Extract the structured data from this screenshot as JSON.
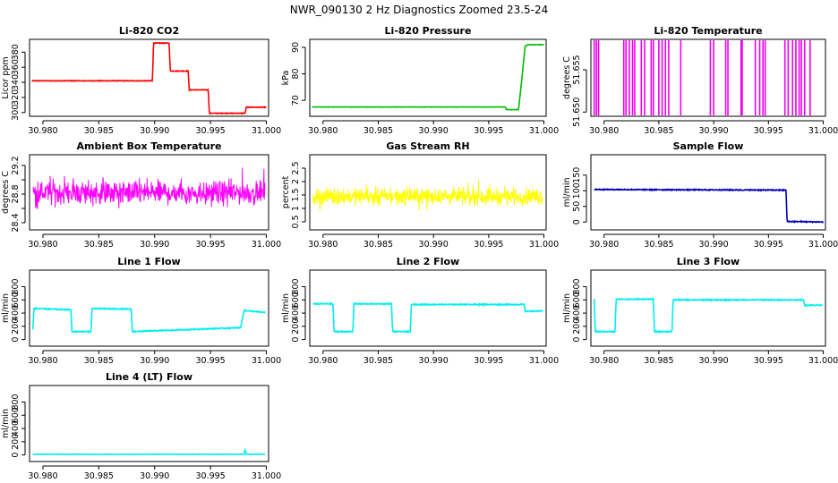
{
  "figure": {
    "title": "NWR_090130  2 Hz Diagnostics Zoomed 23.5-24"
  },
  "chart_data": [
    {
      "type": "line",
      "title": "Li-820 CO2",
      "ylabel": "Licor ppm",
      "color": "#ff0000",
      "xlim": [
        30.9788,
        31.0002
      ],
      "ylim": [
        295,
        397
      ],
      "xticks": [
        "30.980",
        "30.985",
        "30.990",
        "30.995",
        "31.000"
      ],
      "yticks": [
        300,
        320,
        340,
        360,
        380
      ],
      "noise": 0.4,
      "series": [
        {
          "name": "CO2",
          "x": [
            30.979,
            30.9898,
            30.9899,
            30.9913,
            30.9914,
            30.993,
            30.9931,
            30.9948,
            30.9949,
            30.9981,
            30.9982,
            30.9995,
            31.0
          ],
          "values": [
            342,
            342,
            392,
            392,
            355,
            355,
            330,
            330,
            299,
            299,
            307,
            307,
            307
          ]
        }
      ]
    },
    {
      "type": "line",
      "title": "Li-820 Pressure",
      "ylabel": "kPa",
      "color": "#00bb00",
      "xlim": [
        30.9788,
        31.0002
      ],
      "ylim": [
        64,
        93
      ],
      "xticks": [
        "30.980",
        "30.985",
        "30.990",
        "30.995",
        "31.000"
      ],
      "yticks": [
        70,
        80,
        90
      ],
      "noise": 0.05,
      "series": [
        {
          "name": "Pressure",
          "x": [
            30.979,
            30.9965,
            30.9966,
            30.9977,
            30.998,
            30.9983,
            30.9986,
            31.0
          ],
          "values": [
            67.5,
            67.5,
            66.5,
            66.5,
            78,
            90.5,
            91,
            91
          ]
        }
      ]
    },
    {
      "type": "line",
      "title": "Li-820 Temperature",
      "ylabel": "degrees C",
      "color": "#ee00ee",
      "xlim": [
        30.9788,
        31.0002
      ],
      "ylim": [
        51.6495,
        51.6586
      ],
      "xticks": [
        "30.980",
        "30.985",
        "30.990",
        "30.995",
        "31.000"
      ],
      "yticks": [
        51.65,
        51.655
      ],
      "ytick_labels": [
        "51.650",
        "51.655"
      ],
      "base": 51.6495,
      "spike_top": 51.6586,
      "spikes": [
        30.9791,
        30.9793,
        30.9795,
        30.9818,
        30.982,
        30.9823,
        30.9826,
        30.9828,
        30.9834,
        30.9837,
        30.9843,
        30.9845,
        30.985,
        30.9853,
        30.9856,
        30.9859,
        30.987,
        30.9897,
        30.99,
        30.9911,
        30.9913,
        30.9925,
        30.9926,
        30.9938,
        30.9942,
        30.9945,
        30.9947,
        30.9965,
        30.9968,
        30.9972,
        30.9975,
        30.9978,
        30.998,
        30.9983,
        30.9988
      ]
    },
    {
      "type": "line",
      "title": "Ambient Box Temperature",
      "ylabel": "degrees C",
      "color": "#ff00ff",
      "xlim": [
        30.9788,
        31.0002
      ],
      "ylim": [
        28.3,
        29.35
      ],
      "xticks": [
        "30.980",
        "30.985",
        "30.990",
        "30.995",
        "31.000"
      ],
      "yticks": [
        28.4,
        28.6,
        28.8,
        29.0,
        29.2
      ],
      "ytick_labels": [
        "28.4",
        "",
        "28.8",
        "",
        "29.2"
      ],
      "mean": 28.82,
      "amplitude": 0.24,
      "x_range": [
        30.9791,
        30.9999
      ]
    },
    {
      "type": "line",
      "title": "Gas Stream RH",
      "ylabel": "percent",
      "color": "#ffff00",
      "xlim": [
        30.9788,
        31.0002
      ],
      "ylim": [
        0.2,
        3.0
      ],
      "xticks": [
        "30.980",
        "30.985",
        "30.990",
        "30.995",
        "31.000"
      ],
      "yticks": [
        0.5,
        1.0,
        1.5,
        2.0,
        2.5
      ],
      "ytick_labels": [
        "0.5",
        "1",
        "1.5",
        "2",
        "2.5"
      ],
      "mean": 1.45,
      "amplitude": 0.45,
      "x_range": [
        30.9791,
        30.9999
      ]
    },
    {
      "type": "line",
      "title": "Sample Flow",
      "ylabel": "ml/min",
      "color": "#0000bb",
      "xlim": [
        30.9788,
        31.0002
      ],
      "ylim": [
        -25,
        215
      ],
      "xticks": [
        "30.980",
        "30.985",
        "30.990",
        "30.995",
        "31.000"
      ],
      "yticks": [
        0,
        50,
        100,
        150
      ],
      "noise": 1.5,
      "series": [
        {
          "name": "Sample Flow",
          "x": [
            30.9791,
            30.9966,
            30.9967,
            31.0
          ],
          "values": [
            104,
            102,
            2,
            0
          ]
        }
      ]
    },
    {
      "type": "line",
      "title": "Line 1 Flow",
      "ylabel": "ml/min",
      "color": "#00eeee",
      "xlim": [
        30.9788,
        31.0002
      ],
      "ylim": [
        -100,
        1050
      ],
      "xticks": [
        "30.980",
        "30.985",
        "30.990",
        "30.995",
        "31.000"
      ],
      "yticks": [
        0,
        200,
        400,
        600,
        800
      ],
      "noise": 7,
      "series": [
        {
          "name": "Line 1",
          "x": [
            30.9791,
            30.9792,
            30.9825,
            30.9826,
            30.9843,
            30.9844,
            30.9879,
            30.988,
            30.9977,
            30.998,
            30.9999
          ],
          "values": [
            150,
            470,
            450,
            120,
            120,
            470,
            460,
            120,
            180,
            440,
            410
          ]
        }
      ]
    },
    {
      "type": "line",
      "title": "Line 2 Flow",
      "ylabel": "ml/min",
      "color": "#00eeee",
      "xlim": [
        30.9788,
        31.0002
      ],
      "ylim": [
        -100,
        1050
      ],
      "xticks": [
        "30.980",
        "30.985",
        "30.990",
        "30.995",
        "31.000"
      ],
      "yticks": [
        0,
        200,
        400,
        600,
        800
      ],
      "noise": 7,
      "series": [
        {
          "name": "Line 2",
          "x": [
            30.9791,
            30.9809,
            30.981,
            30.9827,
            30.9828,
            30.9862,
            30.9863,
            30.9879,
            30.988,
            30.9982,
            30.9983,
            30.9999
          ],
          "values": [
            540,
            540,
            120,
            120,
            540,
            540,
            120,
            120,
            530,
            530,
            430,
            430
          ]
        }
      ]
    },
    {
      "type": "line",
      "title": "Line 3 Flow",
      "ylabel": "ml/min",
      "color": "#00eeee",
      "xlim": [
        30.9788,
        31.0002
      ],
      "ylim": [
        -100,
        1050
      ],
      "xticks": [
        "30.980",
        "30.985",
        "30.990",
        "30.995",
        "31.000"
      ],
      "yticks": [
        0,
        200,
        400,
        600,
        800
      ],
      "noise": 7,
      "series": [
        {
          "name": "Line 3",
          "x": [
            30.9791,
            30.9792,
            30.981,
            30.9811,
            30.9845,
            30.9846,
            30.9862,
            30.9863,
            30.9982,
            30.9983,
            30.9999
          ],
          "values": [
            620,
            120,
            120,
            610,
            610,
            120,
            120,
            600,
            600,
            520,
            520
          ]
        }
      ]
    },
    {
      "type": "line",
      "title": "Line 4 (LT) Flow",
      "ylabel": "ml/min",
      "color": "#00eeee",
      "xlim": [
        30.9788,
        31.0002
      ],
      "ylim": [
        -100,
        1050
      ],
      "xticks": [
        "30.980",
        "30.985",
        "30.990",
        "30.995",
        "31.000"
      ],
      "yticks": [
        0,
        200,
        400,
        600,
        800
      ],
      "noise": 2,
      "series": [
        {
          "name": "Line 4",
          "x": [
            30.9791,
            30.998,
            30.9981,
            30.9982,
            30.9999
          ],
          "values": [
            10,
            10,
            80,
            12,
            10
          ]
        }
      ]
    }
  ]
}
